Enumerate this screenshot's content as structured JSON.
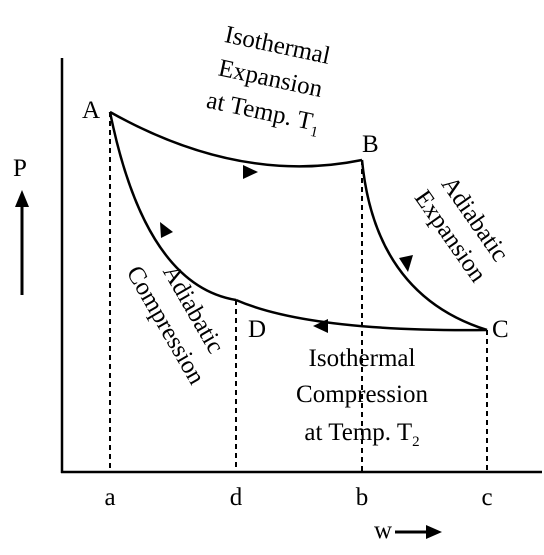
{
  "axes": {
    "y_label": "P",
    "x_label": "w",
    "x_points": [
      "a",
      "d",
      "b",
      "c"
    ]
  },
  "points": {
    "A": "A",
    "B": "B",
    "C": "C",
    "D": "D"
  },
  "processes": {
    "isothermal_expansion": {
      "lines": [
        "Isothermal",
        "Expansion",
        "at Temp. T"
      ],
      "subscript": "1"
    },
    "adiabatic_expansion": {
      "lines": [
        "Adiabatic",
        "Expansion"
      ]
    },
    "adiabatic_compression": {
      "lines": [
        "Adiabatic",
        "Compression"
      ]
    },
    "isothermal_compression": {
      "lines": [
        "Isothermal",
        "Compression",
        "at Temp. T"
      ],
      "subscript": "2"
    }
  }
}
